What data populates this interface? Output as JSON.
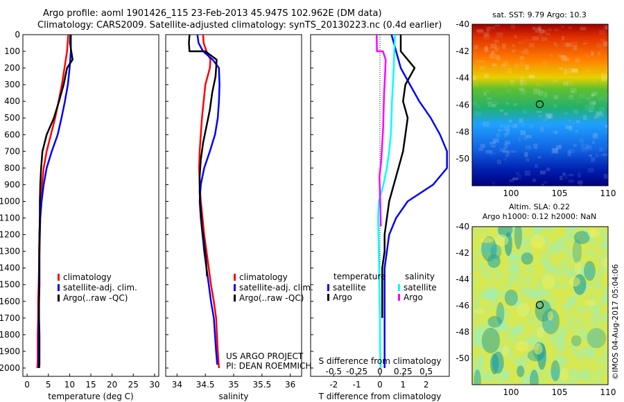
{
  "header": {
    "line1": "Argo profile: aoml 1901426_115 23-Feb-2013 45.947S 102.962E (DM data)",
    "line2": "Climatology: CARS2009. Satellite-adjusted climatology: synTS_20130223.nc (0.4d earlier)"
  },
  "colors": {
    "red": "#ff0000",
    "blue": "#0000ff",
    "black": "#000000",
    "cyan": "#00ffff",
    "magenta": "#ff00ff"
  },
  "chart_data": [
    {
      "id": "temperature",
      "type": "line",
      "xlabel": "temperature (deg C)",
      "ylabel": "",
      "xlim": [
        -1,
        31
      ],
      "ylim": [
        2050,
        0
      ],
      "xticks": [
        0,
        5,
        10,
        15,
        20,
        25,
        30
      ],
      "yticks": [
        0,
        100,
        200,
        300,
        400,
        500,
        600,
        700,
        800,
        900,
        1000,
        1100,
        1200,
        1300,
        1400,
        1500,
        1600,
        1700,
        1800,
        1900,
        2000
      ],
      "legend": [
        "climatology",
        "satellite-adj. clim.",
        "Argo(..raw -QC)"
      ],
      "legend_position": "lower-center",
      "series": [
        {
          "name": "climatology",
          "color": "red",
          "x": [
            9.7,
            9.4,
            8.8,
            8.2,
            7.4,
            6.6,
            5.6,
            4.6,
            3.9,
            3.5,
            3.2,
            3.0,
            2.9,
            2.8,
            2.8,
            2.7,
            2.6,
            2.6,
            2.5,
            2.5,
            2.5,
            2.4
          ],
          "y": [
            0,
            100,
            200,
            300,
            400,
            500,
            600,
            700,
            800,
            900,
            1000,
            1100,
            1200,
            1300,
            1400,
            1500,
            1600,
            1700,
            1800,
            1900,
            1950,
            2000
          ]
        },
        {
          "name": "satellite-adj. clim.",
          "color": "blue",
          "x": [
            10.3,
            10.3,
            10.0,
            9.6,
            8.9,
            8.1,
            7.2,
            5.8,
            4.6,
            3.9,
            3.4,
            3.1,
            3.0,
            2.9,
            2.8,
            2.8,
            2.8,
            2.7,
            2.7,
            2.7,
            2.7
          ],
          "y": [
            0,
            100,
            200,
            300,
            400,
            500,
            600,
            700,
            800,
            900,
            1000,
            1100,
            1200,
            1300,
            1400,
            1500,
            1600,
            1700,
            1800,
            1900,
            2000
          ]
        },
        {
          "name": "Argo(..raw -QC)",
          "color": "black",
          "x": [
            10.2,
            10.1,
            10.4,
            10.7,
            9.4,
            8.6,
            7.5,
            6.3,
            4.6,
            3.6,
            3.3,
            3.1,
            3.0,
            3.0,
            2.9,
            2.9,
            2.9,
            2.9,
            2.8,
            2.8,
            2.9,
            2.9,
            2.9,
            2.9,
            2.8
          ],
          "y": [
            0,
            50,
            100,
            150,
            200,
            300,
            400,
            500,
            600,
            700,
            800,
            900,
            1000,
            1100,
            1200,
            1300,
            1400,
            1500,
            1600,
            1700,
            1800,
            1900,
            1950,
            1980,
            2000
          ]
        }
      ]
    },
    {
      "id": "salinity",
      "type": "line",
      "xlabel": "salinity",
      "xlim": [
        33.8,
        36.2
      ],
      "ylim": [
        2050,
        0
      ],
      "xticks": [
        34,
        34.5,
        35,
        35.5,
        36
      ],
      "xticklabels": [
        "34",
        "34.5",
        "35",
        "35.5",
        "36"
      ],
      "legend": [
        "climatology",
        "satellite-adj. clim.",
        "Argo(..raw -QC)"
      ],
      "legend_position": "lower-right",
      "annotation": [
        "US ARGO PROJECT",
        "PI: DEAN ROEMMICH"
      ],
      "series": [
        {
          "name": "climatology",
          "color": "red",
          "x": [
            34.46,
            34.47,
            34.52,
            34.59,
            34.58,
            34.5,
            34.47,
            34.44,
            34.42,
            34.4,
            34.39,
            34.4,
            34.42,
            34.45,
            34.48,
            34.52,
            34.56,
            34.6,
            34.65,
            34.69,
            34.72,
            34.74
          ],
          "y": [
            0,
            50,
            100,
            150,
            200,
            300,
            400,
            500,
            600,
            700,
            800,
            900,
            1000,
            1100,
            1200,
            1300,
            1400,
            1500,
            1600,
            1700,
            1900,
            2000
          ]
        },
        {
          "name": "satellite-adj. clim.",
          "color": "blue",
          "x": [
            34.36,
            34.38,
            34.46,
            34.63,
            34.74,
            34.75,
            34.74,
            34.72,
            34.67,
            34.58,
            34.48,
            34.42,
            34.4,
            34.42,
            34.45,
            34.48,
            34.52,
            34.56,
            34.6,
            34.65,
            34.69,
            34.71
          ],
          "y": [
            0,
            50,
            100,
            150,
            200,
            300,
            400,
            500,
            600,
            700,
            800,
            900,
            1000,
            1100,
            1200,
            1300,
            1400,
            1500,
            1600,
            1700,
            1900,
            1980
          ]
        },
        {
          "name": "Argo(..raw -QC)",
          "color": "black",
          "x": [
            34.22,
            34.21,
            34.22,
            34.5,
            34.7,
            34.68,
            34.62,
            34.58,
            34.52,
            34.46,
            34.42,
            34.4,
            34.4,
            34.42,
            34.44,
            34.48,
            34.51,
            34.53
          ],
          "y": [
            0,
            50,
            100,
            100,
            150,
            250,
            350,
            450,
            550,
            650,
            750,
            850,
            950,
            1050,
            1150,
            1250,
            1350,
            1450
          ]
        }
      ]
    },
    {
      "id": "difference",
      "type": "line",
      "xlabel": "T difference from climatology",
      "xlim": [
        -3,
        3
      ],
      "ylim": [
        2050,
        0
      ],
      "xticks": [
        -2,
        -1,
        0,
        1,
        2
      ],
      "top_axis_label": "S difference from climatology",
      "top_ticks": [
        -0.5,
        -0.25,
        0,
        0.25,
        0.5
      ],
      "top_ticklabels": [
        "-0.5",
        "-0.25",
        "0",
        "0.25",
        "0.5"
      ],
      "legend": [
        "temperature",
        "satellite",
        "Argo",
        "salinity",
        "satellite",
        "Argo"
      ],
      "legend_position": "lower-center",
      "series": [
        {
          "name": "temperature satellite",
          "color": "blue",
          "x": [
            0.5,
            0.7,
            0.9,
            1.3,
            1.7,
            2.2,
            2.6,
            2.9,
            2.9,
            2.3,
            1.2,
            0.7,
            0.4,
            0.3,
            0.2,
            0.2,
            0.2,
            0.2,
            0.2,
            0.2,
            0.2,
            0.2
          ],
          "y": [
            0,
            100,
            200,
            300,
            400,
            500,
            600,
            700,
            800,
            900,
            1000,
            1100,
            1200,
            1300,
            1400,
            1500,
            1600,
            1700,
            1800,
            1900,
            1950,
            2000
          ]
        },
        {
          "name": "temperature Argo",
          "color": "black",
          "x": [
            0.9,
            0.9,
            1.5,
            1.1,
            1.0,
            1.2,
            1.1,
            1.0,
            0.8,
            0.6,
            0.4,
            0.3,
            0.2,
            0.2,
            0.1,
            0.1,
            0.1,
            0.1
          ],
          "y": [
            0,
            100,
            200,
            300,
            400,
            500,
            600,
            700,
            800,
            900,
            1000,
            1100,
            1200,
            1300,
            1400,
            1500,
            1600,
            1700
          ]
        },
        {
          "name": "salinity satellite",
          "color": "cyan",
          "x": [
            0.65,
            0.62,
            0.6,
            0.56,
            0.52,
            0.5,
            0.47,
            0.4,
            0.3,
            0.15,
            -0.05,
            -0.08,
            -0.05,
            -0.02,
            0.0,
            0.01,
            0.03
          ],
          "y": [
            0,
            100,
            200,
            300,
            400,
            500,
            600,
            700,
            800,
            900,
            1000,
            1100,
            1300,
            1500,
            1700,
            1900,
            2000
          ]
        },
        {
          "name": "salinity Argo",
          "color": "magenta",
          "x": [
            -0.14,
            -0.13,
            0.13,
            0.25,
            0.22,
            0.18,
            0.16,
            0.14,
            0.1,
            0.06,
            -0.02,
            0.0,
            0.02,
            0.04
          ],
          "y": [
            0,
            100,
            100,
            150,
            250,
            350,
            450,
            550,
            650,
            750,
            850,
            950,
            1050,
            1150
          ]
        }
      ]
    },
    {
      "id": "sst-map",
      "type": "heatmap",
      "title": "sat. SST: 9.79 Argo: 10.3",
      "xlim": [
        96,
        110
      ],
      "ylim": [
        -52,
        -40
      ],
      "xticks": [
        100,
        105,
        110
      ],
      "yticks": [
        -40,
        -42,
        -44,
        -46,
        -48,
        -50
      ],
      "marker": {
        "lon": 102.962,
        "lat": -45.947
      },
      "row_bands": [
        {
          "lat": -40.5,
          "value": "dark-red"
        },
        {
          "lat": -42,
          "value": "orange"
        },
        {
          "lat": -43.5,
          "value": "yellow"
        },
        {
          "lat": -45,
          "value": "green"
        },
        {
          "lat": -46.5,
          "value": "green"
        },
        {
          "lat": -48,
          "value": "light-blue"
        },
        {
          "lat": -49.5,
          "value": "blue"
        },
        {
          "lat": -51,
          "value": "dark-blue"
        }
      ]
    },
    {
      "id": "sla-map",
      "type": "heatmap",
      "title": "Altim. SLA: 0.22",
      "subtitle": "Argo h1000: 0.12 h2000: NaN",
      "xlim": [
        96,
        110
      ],
      "ylim": [
        -52,
        -40
      ],
      "xticks": [
        100,
        105,
        110
      ],
      "yticks": [
        -40,
        -42,
        -44,
        -46,
        -48,
        -50
      ],
      "marker": {
        "lon": 102.962,
        "lat": -45.947
      }
    }
  ],
  "watermark": "©IMOS 04-Aug-2017 05:04:06"
}
